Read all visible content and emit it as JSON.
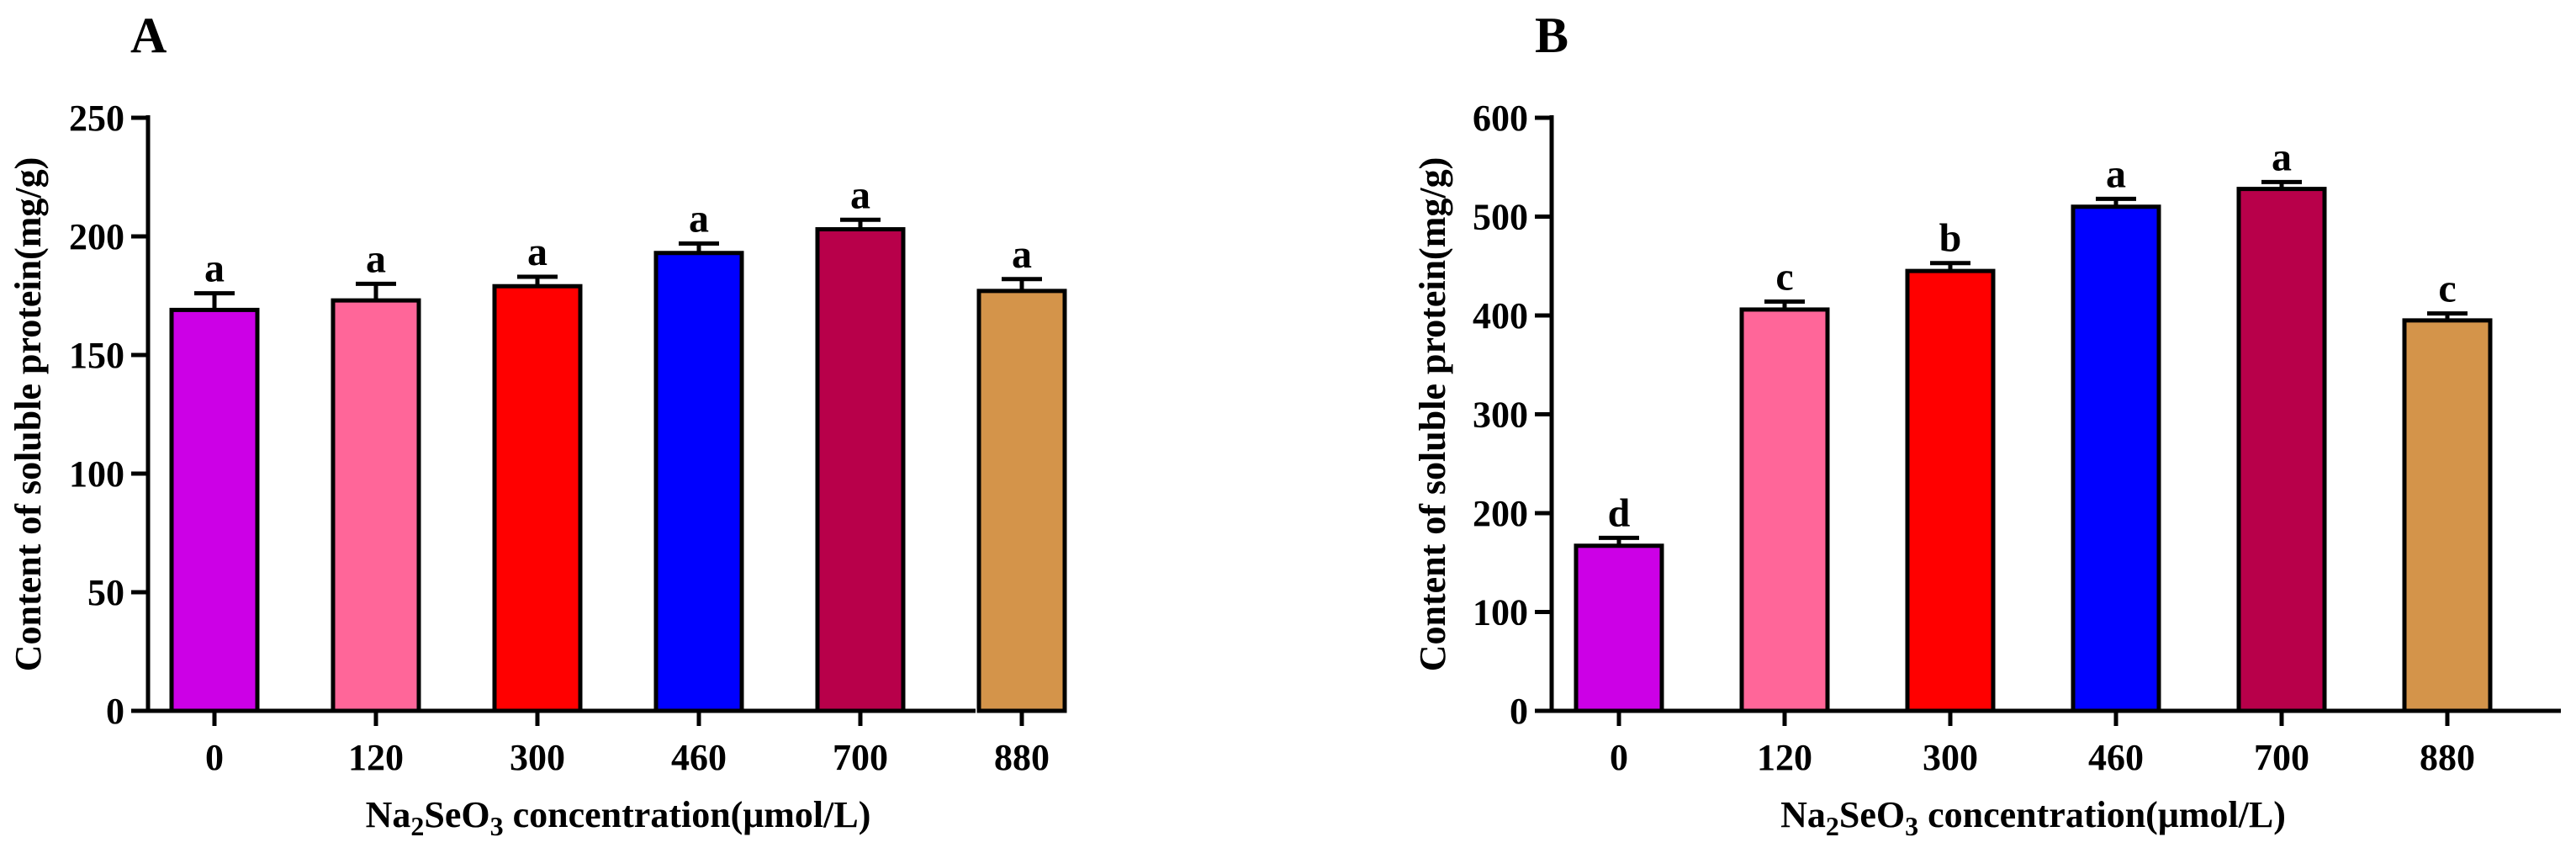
{
  "chart_data": [
    {
      "panel": "A",
      "type": "bar",
      "categories": [
        "0",
        "120",
        "300",
        "460",
        "700",
        "880"
      ],
      "values": [
        169,
        173,
        179,
        193,
        203,
        177
      ],
      "errors": [
        7,
        7,
        4,
        4,
        4,
        5
      ],
      "significance": [
        "a",
        "a",
        "a",
        "a",
        "a",
        "a"
      ],
      "colors": [
        "#cc00e6",
        "#ff6699",
        "#ff0000",
        "#0000ff",
        "#b8004a",
        "#d4944a"
      ],
      "ylim": [
        0,
        250
      ],
      "yticks": [
        0,
        50,
        100,
        150,
        200,
        250
      ],
      "ylabel": "Content of soluble protein(mg/g)",
      "xlabel": {
        "prefix": "Na",
        "sub1": "2",
        "mid": "SeO",
        "sub2": "3",
        "suffix": " concentration(μmol/L)"
      }
    },
    {
      "panel": "B",
      "type": "bar",
      "categories": [
        "0",
        "120",
        "300",
        "460",
        "700",
        "880"
      ],
      "values": [
        167,
        406,
        445,
        510,
        528,
        395
      ],
      "errors": [
        8,
        8,
        8,
        8,
        7,
        7
      ],
      "significance": [
        "d",
        "c",
        "b",
        "a",
        "a",
        "c"
      ],
      "colors": [
        "#cc00e6",
        "#ff6699",
        "#ff0000",
        "#0000ff",
        "#b8004a",
        "#d4944a"
      ],
      "ylim": [
        0,
        600
      ],
      "yticks": [
        0,
        100,
        200,
        300,
        400,
        500,
        600
      ],
      "ylabel": "Content of soluble protein(mg/g)",
      "xlabel": {
        "prefix": "Na",
        "sub1": "2",
        "mid": "SeO",
        "sub2": "3",
        "suffix": " concentration(μmol/L)"
      }
    }
  ]
}
